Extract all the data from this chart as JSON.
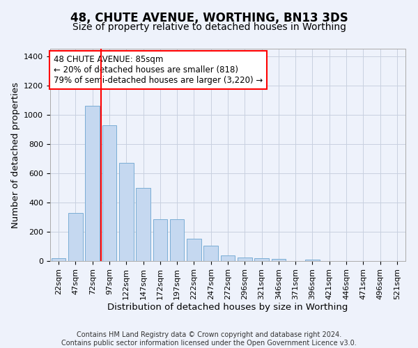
{
  "title": "48, CHUTE AVENUE, WORTHING, BN13 3DS",
  "subtitle": "Size of property relative to detached houses in Worthing",
  "xlabel": "Distribution of detached houses by size in Worthing",
  "ylabel": "Number of detached properties",
  "categories": [
    "22sqm",
    "47sqm",
    "72sqm",
    "97sqm",
    "122sqm",
    "147sqm",
    "172sqm",
    "197sqm",
    "222sqm",
    "247sqm",
    "272sqm",
    "296sqm",
    "321sqm",
    "346sqm",
    "371sqm",
    "396sqm",
    "421sqm",
    "446sqm",
    "471sqm",
    "496sqm",
    "521sqm"
  ],
  "values": [
    20,
    330,
    1060,
    925,
    670,
    500,
    285,
    285,
    150,
    105,
    40,
    25,
    20,
    15,
    0,
    10,
    0,
    0,
    0,
    0,
    0
  ],
  "bar_color": "#c5d8f0",
  "bar_edge_color": "#7aadd4",
  "vline_color": "red",
  "annotation_text": "48 CHUTE AVENUE: 85sqm\n← 20% of detached houses are smaller (818)\n79% of semi-detached houses are larger (3,220) →",
  "annotation_box_color": "white",
  "annotation_box_edge_color": "red",
  "ylim": [
    0,
    1450
  ],
  "yticks": [
    0,
    200,
    400,
    600,
    800,
    1000,
    1200,
    1400
  ],
  "footer_text": "Contains HM Land Registry data © Crown copyright and database right 2024.\nContains public sector information licensed under the Open Government Licence v3.0.",
  "bg_color": "#eef2fb",
  "plot_bg_color": "#eef2fb",
  "grid_color": "#c8d0e0",
  "title_fontsize": 12,
  "subtitle_fontsize": 10,
  "axis_label_fontsize": 9.5,
  "tick_fontsize": 8,
  "annotation_fontsize": 8.5,
  "footer_fontsize": 7
}
